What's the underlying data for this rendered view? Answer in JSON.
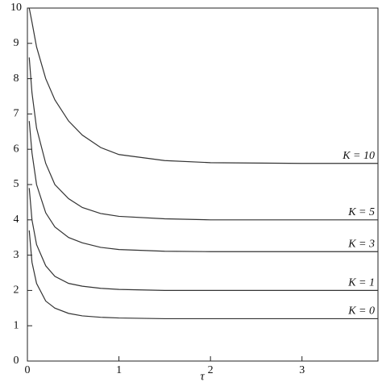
{
  "chart_data": {
    "type": "line",
    "x_label": "τ",
    "x": [
      0.02,
      0.05,
      0.1,
      0.2,
      0.3,
      0.45,
      0.6,
      0.8,
      1.0,
      1.5,
      2,
      3,
      3.83
    ],
    "series": [
      {
        "name": "K = 10",
        "color": "#333333",
        "values": [
          10,
          9.6,
          8.9,
          8.0,
          7.4,
          6.8,
          6.4,
          6.05,
          5.85,
          5.68,
          5.62,
          5.6,
          5.6
        ]
      },
      {
        "name": "K = 5",
        "color": "#333333",
        "values": [
          8.6,
          7.6,
          6.6,
          5.6,
          5.0,
          4.6,
          4.35,
          4.18,
          4.1,
          4.03,
          4.0,
          4.0,
          4.0
        ]
      },
      {
        "name": "K = 3",
        "color": "#333333",
        "values": [
          6.8,
          5.9,
          5.0,
          4.2,
          3.8,
          3.5,
          3.35,
          3.22,
          3.16,
          3.11,
          3.1,
          3.1,
          3.1
        ]
      },
      {
        "name": "K = 1",
        "color": "#333333",
        "values": [
          4.9,
          4.0,
          3.3,
          2.7,
          2.4,
          2.2,
          2.12,
          2.06,
          2.03,
          2.0,
          2.0,
          2.0,
          2.0
        ]
      },
      {
        "name": "K = 0",
        "color": "#333333",
        "values": [
          3.7,
          2.8,
          2.2,
          1.7,
          1.5,
          1.35,
          1.28,
          1.24,
          1.22,
          1.2,
          1.2,
          1.2,
          1.2
        ]
      }
    ],
    "xlim": [
      0,
      3.83
    ],
    "xticks": [
      0,
      1,
      2,
      3
    ],
    "ylim": [
      0,
      10
    ],
    "yticks": [
      0,
      1,
      2,
      3,
      4,
      5,
      6,
      7,
      8,
      9,
      10
    ],
    "grid": false
  }
}
